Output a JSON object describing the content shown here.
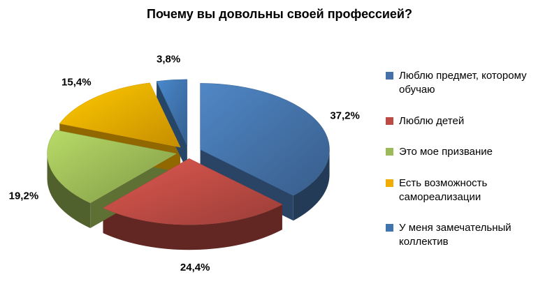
{
  "chart_data": {
    "type": "pie",
    "style": "3d-exploded",
    "title": "Почему вы довольны своей профессией?",
    "unit": "%",
    "legend_position": "right",
    "start_angle_deg": 0,
    "direction": "clockwise",
    "slices": [
      {
        "label": "Люблю предмет, которому обучаю",
        "value": 37.2,
        "value_label": "37,2%",
        "color": "#4472a8"
      },
      {
        "label": "Люблю детей",
        "value": 24.4,
        "value_label": "24,4%",
        "color": "#bc4b44"
      },
      {
        "label": "Это мое  призвание",
        "value": 19.2,
        "value_label": "19,2%",
        "color": "#9cba57"
      },
      {
        "label": "Есть возможность самореализации",
        "value": 15.4,
        "value_label": "15,4%",
        "color": "#f2ac00"
      },
      {
        "label": "У меня замечательный коллектив",
        "value": 3.8,
        "value_label": "3,8%",
        "color": "#3f74ae"
      }
    ]
  }
}
